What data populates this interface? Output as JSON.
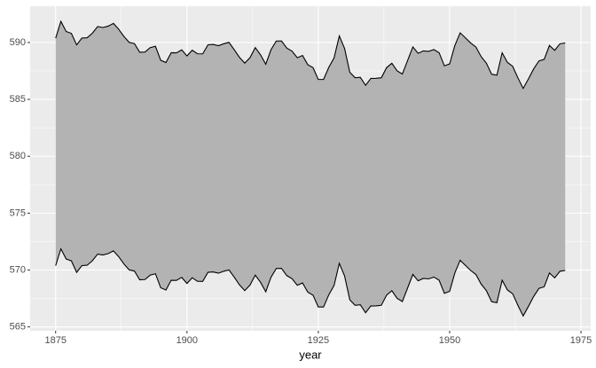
{
  "chart_data": {
    "type": "ribbon",
    "xlabel": "year",
    "x": [
      1875,
      1876,
      1877,
      1878,
      1879,
      1880,
      1881,
      1882,
      1883,
      1884,
      1885,
      1886,
      1887,
      1888,
      1889,
      1890,
      1891,
      1892,
      1893,
      1894,
      1895,
      1896,
      1897,
      1898,
      1899,
      1900,
      1901,
      1902,
      1903,
      1904,
      1905,
      1906,
      1907,
      1908,
      1909,
      1910,
      1911,
      1912,
      1913,
      1914,
      1915,
      1916,
      1917,
      1918,
      1919,
      1920,
      1921,
      1922,
      1923,
      1924,
      1925,
      1926,
      1927,
      1928,
      1929,
      1930,
      1931,
      1932,
      1933,
      1934,
      1935,
      1936,
      1937,
      1938,
      1939,
      1940,
      1941,
      1942,
      1943,
      1944,
      1945,
      1946,
      1947,
      1948,
      1949,
      1950,
      1951,
      1952,
      1953,
      1954,
      1955,
      1956,
      1957,
      1958,
      1959,
      1960,
      1961,
      1962,
      1963,
      1964,
      1965,
      1966,
      1967,
      1968,
      1969,
      1970,
      1971,
      1972
    ],
    "ymax": [
      590.38,
      591.86,
      590.97,
      590.8,
      589.79,
      590.39,
      590.42,
      590.82,
      591.4,
      591.32,
      591.44,
      591.68,
      591.17,
      590.53,
      590.01,
      589.91,
      589.14,
      589.16,
      589.55,
      589.67,
      588.44,
      588.24,
      589.1,
      589.09,
      589.35,
      588.82,
      589.32,
      589.01,
      589.0,
      589.8,
      589.83,
      589.72,
      589.89,
      590.01,
      589.37,
      588.69,
      588.19,
      588.67,
      589.55,
      588.92,
      588.09,
      589.37,
      590.13,
      590.14,
      589.51,
      589.24,
      588.66,
      588.86,
      588.05,
      587.79,
      586.75,
      586.75,
      587.82,
      588.64,
      590.58,
      589.48,
      587.38,
      586.9,
      586.94,
      586.24,
      586.84,
      586.85,
      586.9,
      587.79,
      588.18,
      587.51,
      587.23,
      588.42,
      589.61,
      589.05,
      589.26,
      589.22,
      589.38,
      589.1,
      587.95,
      588.12,
      589.75,
      590.85,
      590.41,
      589.96,
      589.61,
      588.76,
      588.18,
      587.21,
      587.13,
      589.1,
      588.25,
      587.91,
      586.89,
      585.96,
      586.8,
      587.68,
      588.38,
      588.52,
      589.74,
      589.31,
      589.89,
      589.96
    ],
    "ymin": [
      570.38,
      571.86,
      570.97,
      570.8,
      569.79,
      570.39,
      570.42,
      570.82,
      571.4,
      571.32,
      571.44,
      571.68,
      571.17,
      570.53,
      570.01,
      569.91,
      569.14,
      569.16,
      569.55,
      569.67,
      568.44,
      568.24,
      569.1,
      569.09,
      569.35,
      568.82,
      569.32,
      569.01,
      569.0,
      569.8,
      569.83,
      569.72,
      569.89,
      570.01,
      569.37,
      568.69,
      568.19,
      568.67,
      569.55,
      568.92,
      568.09,
      569.37,
      570.13,
      570.14,
      569.51,
      569.24,
      568.66,
      568.86,
      568.05,
      567.79,
      566.75,
      566.75,
      567.82,
      568.64,
      570.58,
      569.48,
      567.38,
      566.9,
      566.94,
      566.24,
      566.84,
      566.85,
      566.9,
      567.79,
      568.18,
      567.51,
      567.23,
      568.42,
      569.61,
      569.05,
      569.26,
      569.22,
      569.38,
      569.1,
      567.95,
      568.12,
      569.75,
      570.85,
      570.41,
      569.96,
      569.61,
      568.76,
      568.18,
      567.21,
      567.13,
      569.1,
      568.25,
      567.91,
      566.89,
      565.96,
      566.8,
      567.68,
      568.38,
      568.52,
      569.74,
      569.31,
      569.89,
      569.96
    ],
    "fill": "#b3b3b3",
    "line_color": "#000000",
    "xlim": [
      1870.15,
      1976.85
    ],
    "ylim": [
      564.66,
      593.19
    ],
    "xticks": [
      1875,
      1900,
      1925,
      1950,
      1975
    ],
    "yticks": [
      565,
      570,
      575,
      580,
      585,
      590
    ],
    "grid": true
  }
}
